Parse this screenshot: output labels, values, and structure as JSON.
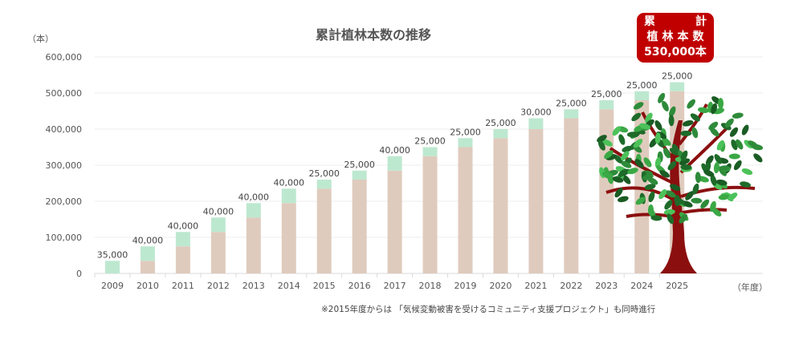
{
  "chart_data": {
    "type": "bar",
    "stacked": true,
    "title": "累計植林本数の推移",
    "ylabel": "（本）",
    "xlabel": "（年度）",
    "ylim": [
      0,
      600000
    ],
    "yticks": [
      "0",
      "100,000",
      "200,000",
      "300,000",
      "400,000",
      "500,000",
      "600,000"
    ],
    "grid": true,
    "categories": [
      "2009",
      "2010",
      "2011",
      "2012",
      "2013",
      "2014",
      "2015",
      "2016",
      "2017",
      "2018",
      "2019",
      "2020",
      "2021",
      "2022",
      "2023",
      "2024",
      "2025"
    ],
    "series": [
      {
        "role": "previous cumulative",
        "color": "#dfcbbd",
        "values": [
          0,
          35000,
          75000,
          115000,
          155000,
          195000,
          235000,
          260000,
          285000,
          325000,
          350000,
          375000,
          400000,
          430000,
          455000,
          480000,
          505000
        ]
      },
      {
        "role": "annual planting",
        "color": "#bde8d0",
        "values": [
          35000,
          40000,
          40000,
          40000,
          40000,
          40000,
          25000,
          25000,
          40000,
          25000,
          25000,
          25000,
          30000,
          25000,
          25000,
          25000,
          25000
        ]
      }
    ],
    "data_labels": [
      "35,000",
      "40,000",
      "40,000",
      "40,000",
      "40,000",
      "40,000",
      "25,000",
      "25,000",
      "40,000",
      "25,000",
      "25,000",
      "25,000",
      "30,000",
      "25,000",
      "25,000",
      "25,000",
      "25,000"
    ],
    "note": "※2015年度からは 「気候変動被害を受けるコミュニティ支援プロジェクト」も同時進行"
  },
  "badge": {
    "line1a": "累",
    "line1b": "計",
    "line2": "植林本数",
    "line3": "530,000本",
    "color": "#c00000"
  },
  "tree_icon": "tree-icon"
}
